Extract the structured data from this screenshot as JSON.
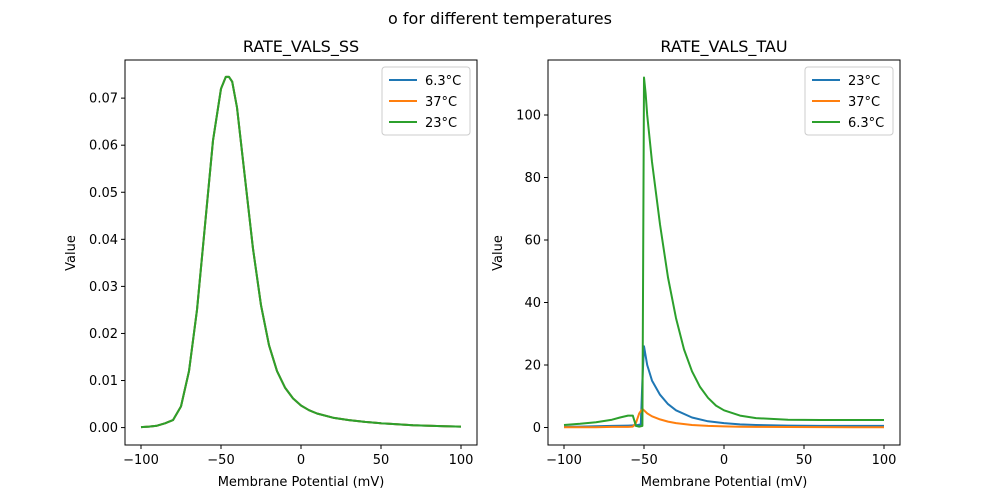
{
  "suptitle": "o for different temperatures",
  "colors": {
    "c0": "#1f77b4",
    "c1": "#ff7f0e",
    "c2": "#2ca02c"
  },
  "chart_data": [
    {
      "type": "line",
      "title": "RATE_VALS_SS",
      "xlabel": "Membrane Potential (mV)",
      "ylabel": "Value",
      "xlim": [
        -110,
        110
      ],
      "ylim": [
        -0.0037,
        0.0781
      ],
      "xticks": [
        -100,
        -50,
        0,
        50,
        100
      ],
      "xtick_labels": [
        "−100",
        "−50",
        "0",
        "50",
        "100"
      ],
      "yticks": [
        0,
        0.01,
        0.02,
        0.03,
        0.04,
        0.05,
        0.06,
        0.07
      ],
      "ytick_labels": [
        "0.00",
        "0.01",
        "0.02",
        "0.03",
        "0.04",
        "0.05",
        "0.06",
        "0.07"
      ],
      "legend": "top-right",
      "grid": false,
      "x": [
        -100,
        -95,
        -90,
        -85,
        -80,
        -75,
        -70,
        -65,
        -60,
        -55,
        -50,
        -47,
        -45,
        -43,
        -40,
        -35,
        -30,
        -25,
        -20,
        -15,
        -10,
        -5,
        0,
        5,
        10,
        20,
        30,
        40,
        50,
        60,
        70,
        80,
        90,
        100
      ],
      "series": [
        {
          "name": "6.3°C",
          "color_key": "c0",
          "values": [
            0.0001,
            0.0002,
            0.0004,
            0.0009,
            0.0016,
            0.0045,
            0.012,
            0.025,
            0.043,
            0.061,
            0.072,
            0.0745,
            0.0745,
            0.0735,
            0.068,
            0.053,
            0.038,
            0.026,
            0.0175,
            0.012,
            0.0085,
            0.0062,
            0.0047,
            0.0037,
            0.003,
            0.0021,
            0.0016,
            0.0012,
            0.0009,
            0.0007,
            0.0005,
            0.0004,
            0.0003,
            0.0002
          ]
        },
        {
          "name": "37°C",
          "color_key": "c1",
          "values": [
            0.0001,
            0.0002,
            0.0004,
            0.0009,
            0.0016,
            0.0045,
            0.012,
            0.025,
            0.043,
            0.061,
            0.072,
            0.0745,
            0.0745,
            0.0735,
            0.068,
            0.053,
            0.038,
            0.026,
            0.0175,
            0.012,
            0.0085,
            0.0062,
            0.0047,
            0.0037,
            0.003,
            0.0021,
            0.0016,
            0.0012,
            0.0009,
            0.0007,
            0.0005,
            0.0004,
            0.0003,
            0.0002
          ]
        },
        {
          "name": "23°C",
          "color_key": "c2",
          "values": [
            0.0001,
            0.0002,
            0.0004,
            0.0009,
            0.0016,
            0.0045,
            0.012,
            0.025,
            0.043,
            0.061,
            0.072,
            0.0745,
            0.0745,
            0.0735,
            0.068,
            0.053,
            0.038,
            0.026,
            0.0175,
            0.012,
            0.0085,
            0.0062,
            0.0047,
            0.0037,
            0.003,
            0.0021,
            0.0016,
            0.0012,
            0.0009,
            0.0007,
            0.0005,
            0.0004,
            0.0003,
            0.0002
          ]
        }
      ]
    },
    {
      "type": "line",
      "title": "RATE_VALS_TAU",
      "xlabel": "Membrane Potential (mV)",
      "ylabel": "Value",
      "xlim": [
        -110,
        110
      ],
      "ylim": [
        -5.6,
        117.6
      ],
      "xticks": [
        -100,
        -50,
        0,
        50,
        100
      ],
      "xtick_labels": [
        "−100",
        "−50",
        "0",
        "50",
        "100"
      ],
      "yticks": [
        0,
        20,
        40,
        60,
        80,
        100
      ],
      "ytick_labels": [
        "0",
        "20",
        "40",
        "60",
        "80",
        "100"
      ],
      "legend": "top-right",
      "grid": false,
      "series": [
        {
          "name": "23°C",
          "color_key": "c0",
          "x": [
            -100,
            -90,
            -80,
            -70,
            -60,
            -55,
            -52,
            -51,
            -50,
            -48,
            -45,
            -40,
            -35,
            -30,
            -20,
            -10,
            0,
            10,
            20,
            40,
            60,
            80,
            100
          ],
          "values": [
            0.2,
            0.3,
            0.4,
            0.5,
            0.6,
            0.7,
            1.0,
            15.0,
            26.0,
            20.0,
            15.0,
            10.5,
            7.5,
            5.5,
            3.2,
            2.0,
            1.4,
            1.0,
            0.8,
            0.6,
            0.5,
            0.5,
            0.5
          ]
        },
        {
          "name": "37°C",
          "color_key": "c1",
          "x": [
            -100,
            -90,
            -80,
            -70,
            -60,
            -57,
            -55,
            -53,
            -51,
            -50,
            -48,
            -45,
            -40,
            -35,
            -30,
            -20,
            -10,
            0,
            10,
            20,
            40,
            60,
            80,
            100
          ],
          "values": [
            0.1,
            0.1,
            0.1,
            0.2,
            0.2,
            0.3,
            1.5,
            4.5,
            6.0,
            5.5,
            4.5,
            3.6,
            2.6,
            1.9,
            1.4,
            0.8,
            0.5,
            0.35,
            0.25,
            0.2,
            0.15,
            0.12,
            0.1,
            0.1
          ]
        },
        {
          "name": "6.3°C",
          "color_key": "c2",
          "x": [
            -100,
            -90,
            -80,
            -70,
            -65,
            -60,
            -57,
            -55,
            -53,
            -51,
            -50,
            -49,
            -48,
            -45,
            -40,
            -35,
            -30,
            -25,
            -20,
            -15,
            -10,
            -5,
            0,
            10,
            20,
            40,
            60,
            80,
            100
          ],
          "values": [
            0.8,
            1.2,
            1.7,
            2.5,
            3.2,
            3.8,
            3.8,
            0.5,
            0.3,
            0.5,
            112.0,
            107.0,
            100.0,
            85.0,
            65.0,
            48.0,
            35.0,
            25.0,
            18.0,
            13.0,
            9.5,
            7.0,
            5.5,
            3.8,
            3.0,
            2.5,
            2.4,
            2.4,
            2.4
          ]
        }
      ]
    }
  ]
}
